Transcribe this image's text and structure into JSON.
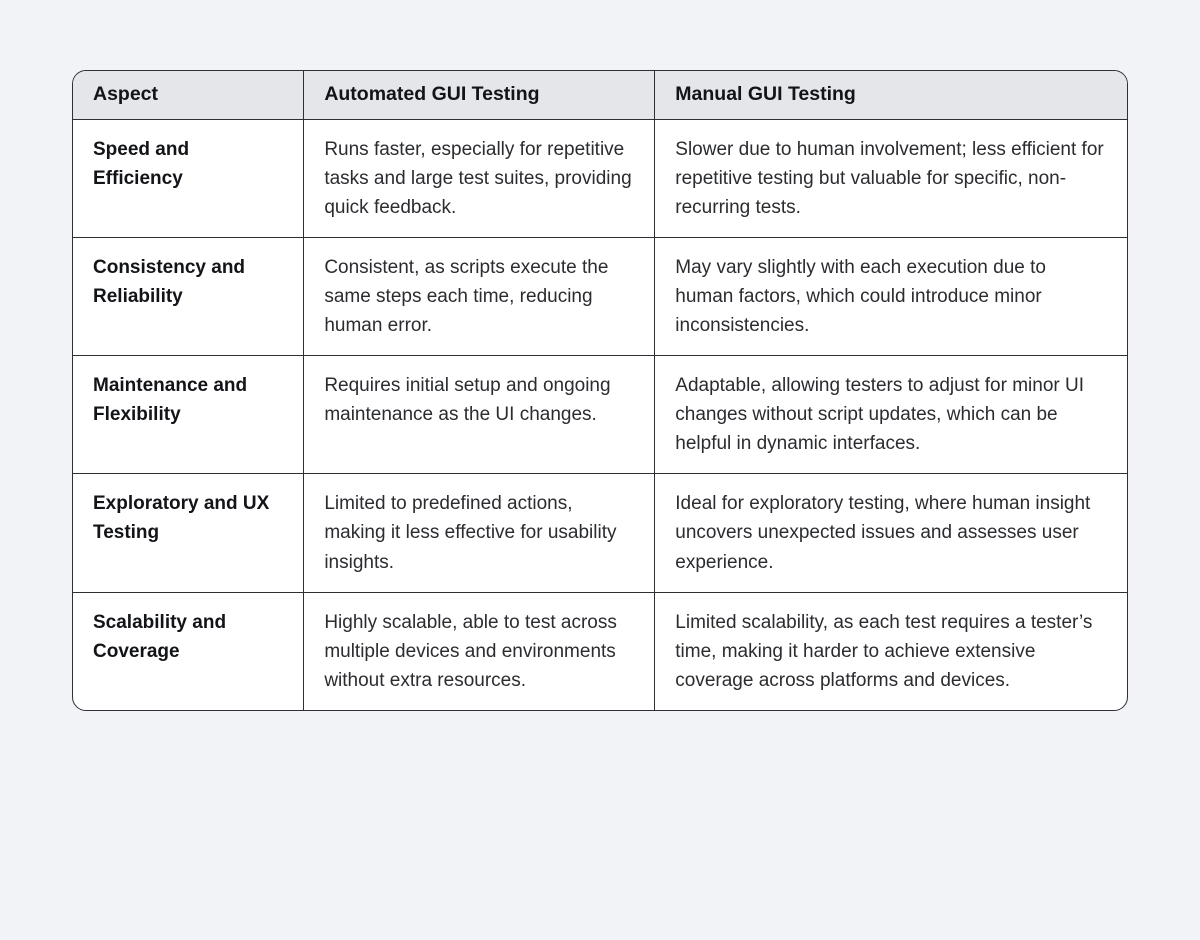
{
  "table": {
    "columns": [
      {
        "label": "Aspect"
      },
      {
        "label": "Automated GUI Testing"
      },
      {
        "label": "Manual GUI Testing"
      }
    ],
    "rows": [
      {
        "aspect": "Speed and Efficiency",
        "automated": "Runs faster, especially for repetitive tasks and large test suites, providing quick feedback.",
        "manual": "Slower due to human involvement; less efficient for repetitive testing but valuable for specific, non-recurring tests."
      },
      {
        "aspect": "Consistency and Reliability",
        "automated": "Consistent, as scripts execute the same steps each time, reducing human error.",
        "manual": "May vary slightly with each execution due to human factors, which could introduce minor inconsistencies."
      },
      {
        "aspect": "Maintenance and Flexibility",
        "automated": "Requires initial setup and ongoing maintenance as the UI changes.",
        "manual": "Adaptable, allowing testers to adjust for minor UI changes without script updates, which can be helpful in dynamic interfaces."
      },
      {
        "aspect": "Exploratory and UX Testing",
        "automated": "Limited to predefined actions, making it less effective for usability insights.",
        "manual": "Ideal for exploratory testing, where human insight uncovers unexpected issues and assesses user experience."
      },
      {
        "aspect": "Scalability and Coverage",
        "automated": "Highly scalable, able to test across multiple devices and environments without extra resources.",
        "manual": "Limited scalability, as each test requires a tester’s time, making it harder to achieve extensive coverage across platforms and devices."
      }
    ],
    "colors": {
      "page_bg": "#f1f3f6",
      "table_bg": "#ffffff",
      "header_bg": "#e4e6e9",
      "border": "#2e3035",
      "text": "#2a2c30",
      "text_strong": "#121418"
    }
  }
}
